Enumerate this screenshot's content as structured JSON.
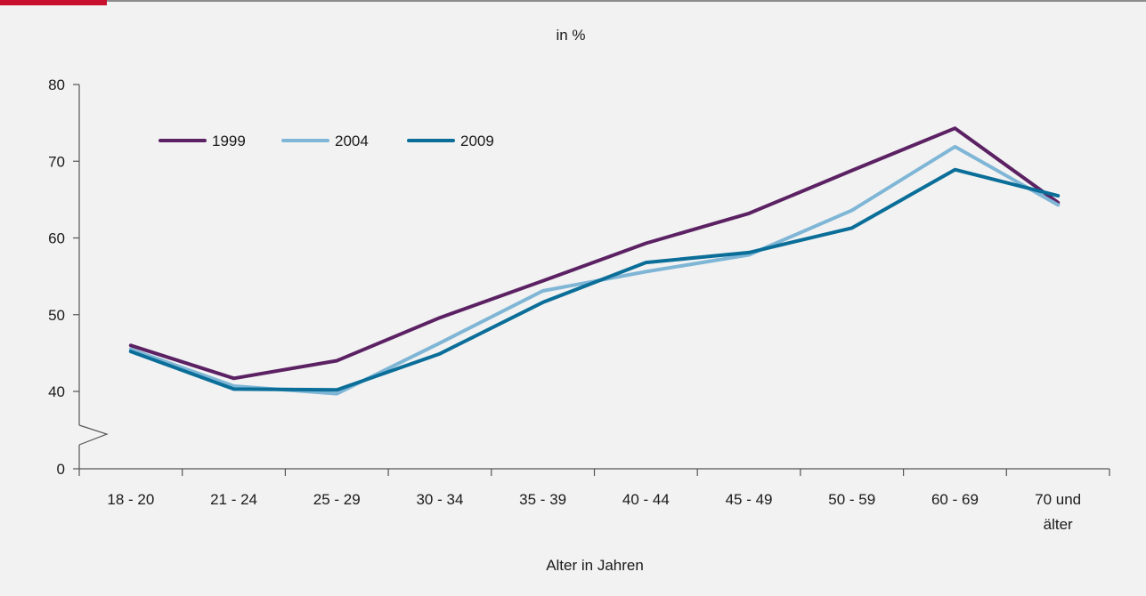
{
  "chart_data": {
    "type": "line",
    "unit_label": "in %",
    "xlabel": "Alter in Jahren",
    "ylabel": "",
    "categories": [
      "18 - 20",
      "21 - 24",
      "25 - 29",
      "30 - 34",
      "35 - 39",
      "40 - 44",
      "45 - 49",
      "50 - 59",
      "60 - 69",
      "70 und älter"
    ],
    "y_ticks": [
      0,
      40,
      50,
      60,
      70,
      80
    ],
    "ylim": [
      40,
      80
    ],
    "axis_break": true,
    "grid": false,
    "legend_position": "top-left",
    "series": [
      {
        "name": "1999",
        "color": "#5b2163",
        "values": [
          46,
          41.7,
          44,
          49.6,
          54.4,
          59.3,
          63.2,
          68.8,
          74.3,
          64.6
        ]
      },
      {
        "name": "2004",
        "color": "#7fb6d6",
        "values": [
          45.5,
          40.7,
          39.7,
          46.3,
          53.1,
          55.6,
          57.8,
          63.6,
          71.9,
          64.3
        ]
      },
      {
        "name": "2009",
        "color": "#0a6e99",
        "values": [
          45.2,
          40.3,
          40.2,
          44.9,
          51.6,
          56.8,
          58.1,
          61.3,
          68.9,
          65.5
        ]
      }
    ]
  }
}
